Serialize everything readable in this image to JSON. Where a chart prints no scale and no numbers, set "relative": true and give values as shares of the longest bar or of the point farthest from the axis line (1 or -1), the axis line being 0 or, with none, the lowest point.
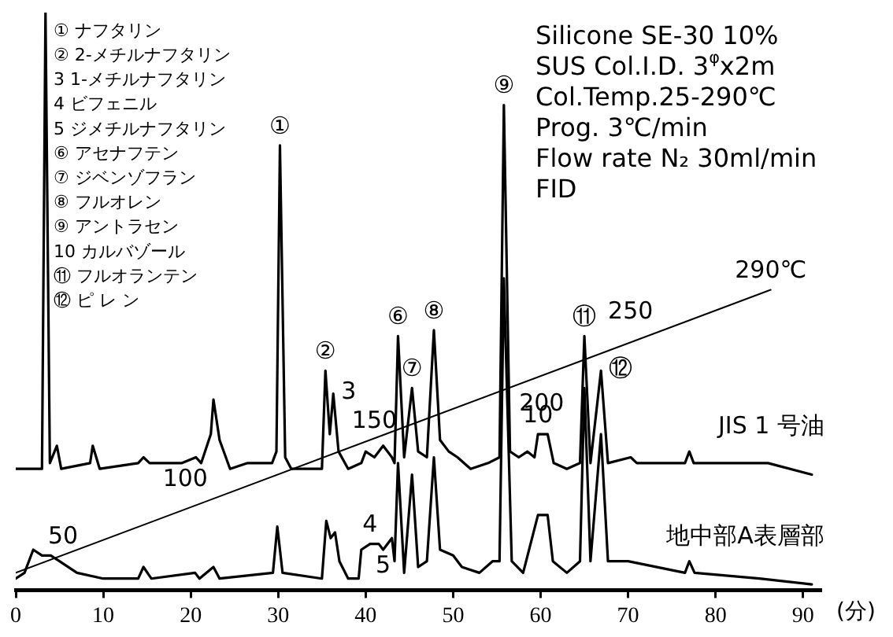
{
  "chart_data": {
    "type": "line",
    "relative": true,
    "subtitle": "Silicone SE-30 10%\nSUS Col.I.D. 3$^{φ}$x2m\nCol.Temp.25-290℃\nProg. 3℃/min\nFlow rate N₂ 30ml/min\nFID",
    "xlabel": "(分)",
    "xlim": [
      0,
      92
    ],
    "xticks": [
      0,
      10,
      20,
      30,
      40,
      50,
      60,
      70,
      80,
      90
    ],
    "grid": false,
    "legend": false,
    "marker": "none",
    "line_style": "solid",
    "series": [
      {
        "name": "JIS 1 号油",
        "color": "#000000",
        "x": [
          0,
          3,
          3.4,
          3.9,
          4.7,
          5.2,
          8.5,
          8.8,
          9.6,
          14,
          14.6,
          15.3,
          19,
          20.6,
          21.2,
          22.3,
          22.6,
          23.3,
          24.5,
          26.5,
          29.3,
          29.8,
          30.2,
          30.8,
          31.5,
          35,
          35.4,
          35.9,
          36.3,
          36.9,
          38,
          39.5,
          40,
          41,
          42,
          43,
          43.3,
          43.7,
          44.4,
          45.3,
          46,
          47,
          47.8,
          48.5,
          49.5,
          50.5,
          52,
          54,
          55.3,
          55.8,
          56.5,
          57.5,
          58.5,
          59.3,
          59.7,
          60.8,
          61.5,
          63,
          64.5,
          65,
          65.7,
          66.9,
          67.7,
          70.3,
          71,
          76.5,
          77,
          77.5,
          85,
          86,
          91
        ],
        "values": [
          0.21,
          0.21,
          1,
          0.22,
          0.25,
          0.21,
          0.22,
          0.25,
          0.21,
          0.22,
          0.23,
          0.22,
          0.22,
          0.23,
          0.22,
          0.27,
          0.33,
          0.26,
          0.21,
          0.22,
          0.22,
          0.24,
          0.77,
          0.23,
          0.21,
          0.21,
          0.38,
          0.27,
          0.34,
          0.24,
          0.21,
          0.22,
          0.24,
          0.23,
          0.25,
          0.23,
          0.22,
          0.44,
          0.23,
          0.35,
          0.24,
          0.23,
          0.45,
          0.26,
          0.24,
          0.23,
          0.21,
          0.22,
          0.23,
          0.84,
          0.24,
          0.23,
          0.24,
          0.23,
          0.27,
          0.27,
          0.22,
          0.21,
          0.22,
          0.44,
          0.22,
          0.38,
          0.22,
          0.23,
          0.22,
          0.22,
          0.24,
          0.22,
          0.22,
          0.22,
          0.2
        ]
      },
      {
        "name": "地中部A表層部",
        "color": "#000000",
        "x": [
          0,
          1,
          2,
          3,
          4,
          5,
          7,
          10,
          14,
          14.6,
          15.5,
          20.5,
          21,
          22.6,
          23.3,
          29.4,
          29.9,
          30.5,
          35,
          35.5,
          36,
          36.5,
          37,
          38,
          39.2,
          39.5,
          40.5,
          41.5,
          42,
          43,
          43.3,
          43.7,
          44.4,
          45.3,
          46,
          47,
          47.8,
          48.5,
          50,
          51,
          53,
          54.5,
          55.3,
          55.8,
          56.7,
          58,
          59.7,
          60.8,
          61.4,
          63,
          64.5,
          65,
          65.7,
          66.9,
          67.7,
          70,
          76.5,
          77,
          77.6,
          85,
          91
        ],
        "values": [
          0.02,
          0.03,
          0.07,
          0.06,
          0.06,
          0.05,
          0.03,
          0.02,
          0.02,
          0.04,
          0.02,
          0.03,
          0.02,
          0.04,
          0.02,
          0.03,
          0.11,
          0.03,
          0.02,
          0.12,
          0.09,
          0.1,
          0.05,
          0.02,
          0.02,
          0.07,
          0.08,
          0.08,
          0.07,
          0.09,
          0.05,
          0.22,
          0.03,
          0.2,
          0.04,
          0.05,
          0.23,
          0.07,
          0.06,
          0.04,
          0.03,
          0.05,
          0.05,
          0.54,
          0.05,
          0.03,
          0.13,
          0.13,
          0.05,
          0.03,
          0.05,
          0.35,
          0.05,
          0.27,
          0.05,
          0.05,
          0.03,
          0.05,
          0.03,
          0.02,
          0.01
        ]
      },
      {
        "color": "#000000",
        "x": [
          0,
          86.3
        ],
        "values": [
          0.03,
          0.52
        ]
      }
    ],
    "annotations": [
      "① ナフタリン",
      "② 2-メチルナフタリン",
      "3 1-メチルナフタリン",
      "4 ビフェニル",
      "5 ジメチルナフタリン",
      "⑥ アセナフテン",
      "⑦ ジベンゾフラン",
      "⑧ フルオレン",
      "⑨ アントラセン",
      "10 カルバゾール",
      "⑪ フルオランテン",
      "⑫ ピ レ ン",
      {
        "text": "①",
        "x": 30.2,
        "y": 0.77
      },
      {
        "text": "②",
        "x": 35.4,
        "y": 0.38
      },
      {
        "text": "3",
        "x": 36.3,
        "y": 0.34
      },
      {
        "text": "4",
        "x": 40.5,
        "y": 0.08
      },
      {
        "text": "5",
        "x": 42,
        "y": 0.07
      },
      {
        "text": "⑥",
        "x": 43.7,
        "y": 0.44
      },
      {
        "text": "⑦",
        "x": 45.3,
        "y": 0.35
      },
      {
        "text": "⑧",
        "x": 47.8,
        "y": 0.45
      },
      {
        "text": "⑨",
        "x": 55.8,
        "y": 0.84
      },
      {
        "text": "10",
        "x": 59.7,
        "y": 0.27
      },
      {
        "text": "⑪",
        "x": 65,
        "y": 0.44
      },
      {
        "text": "⑫",
        "x": 66.9,
        "y": 0.38
      },
      {
        "text": "50",
        "x": 5.4,
        "y": 0.06
      },
      {
        "text": "100",
        "x": 22.5,
        "y": 0.16
      },
      {
        "text": "150",
        "x": 41,
        "y": 0.26
      },
      {
        "text": "200",
        "x": 57,
        "y": 0.35
      },
      {
        "text": "250",
        "x": 73.4,
        "y": 0.45
      },
      {
        "text": "290℃",
        "x": 86.3,
        "y": 0.52
      }
    ]
  }
}
